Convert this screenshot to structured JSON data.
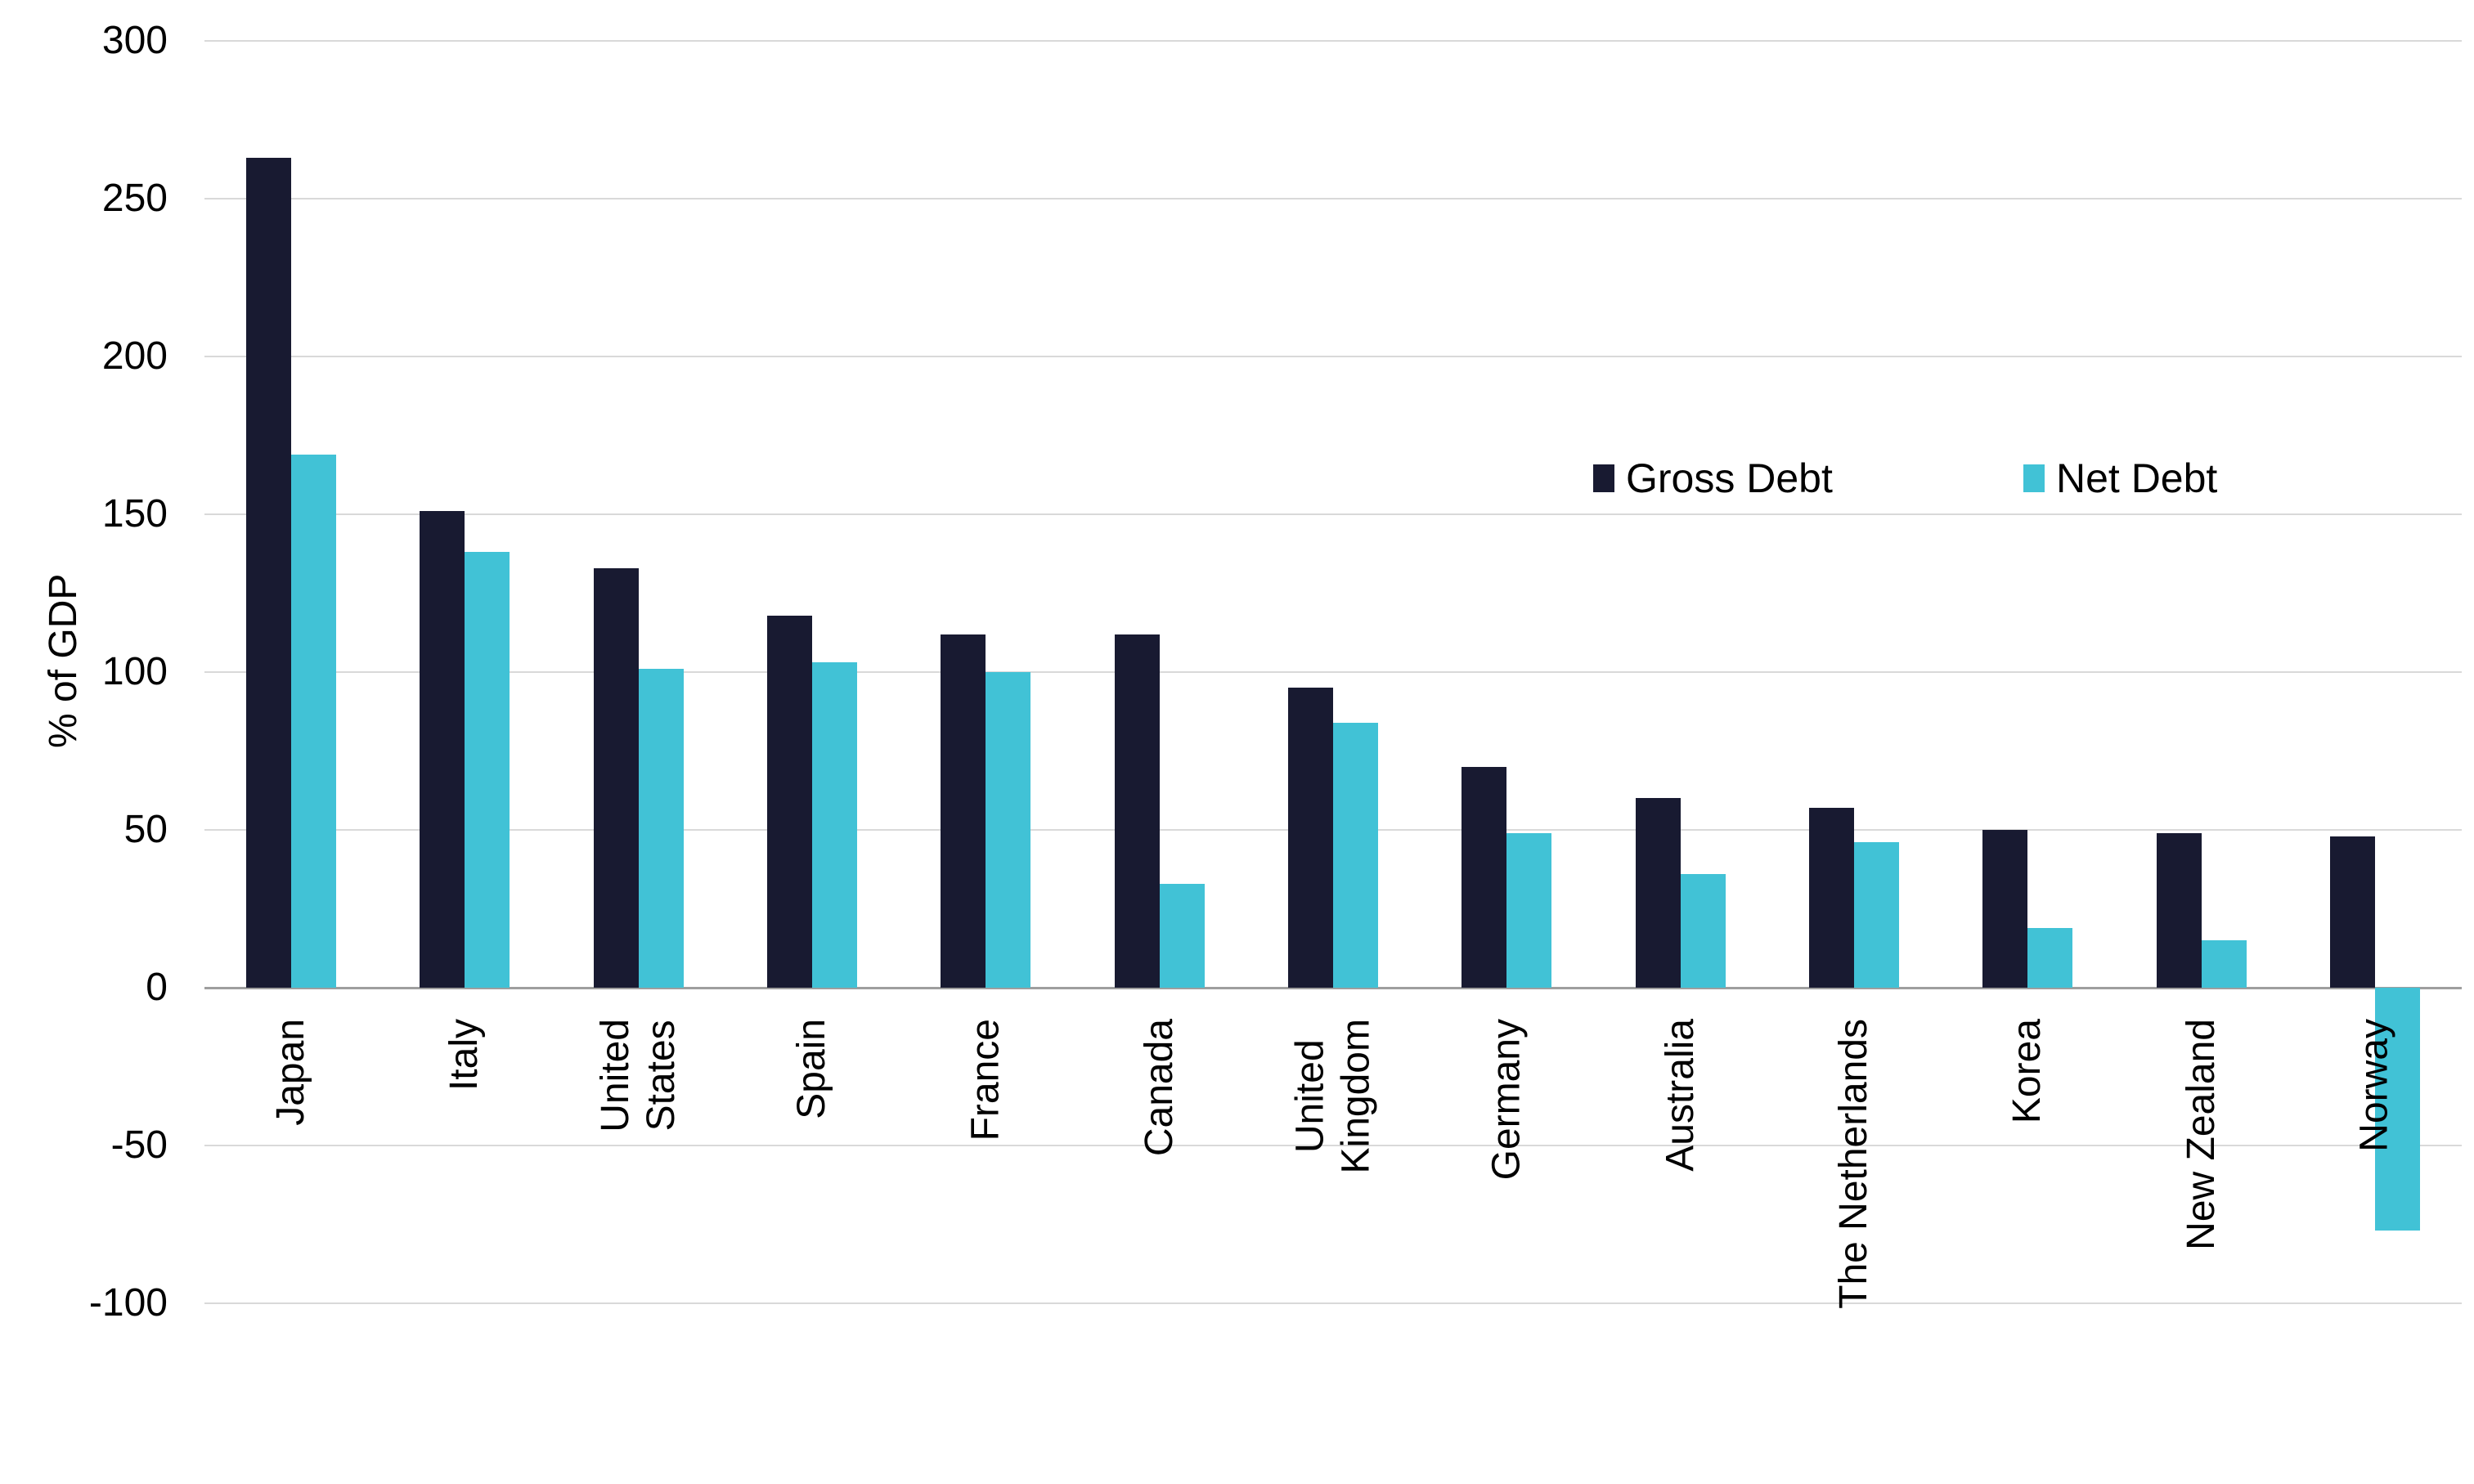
{
  "chart_data": {
    "type": "bar",
    "title": "",
    "xlabel": "",
    "ylabel": "% of GDP",
    "ylim": [
      -100,
      300
    ],
    "ytick_step": 50,
    "yticks": [
      300,
      250,
      200,
      150,
      100,
      50,
      0,
      -50,
      -100
    ],
    "grid": true,
    "legend_position": "right-center",
    "categories": [
      "Japan",
      "Italy",
      "United\nStates",
      "Spain",
      "France",
      "Canada",
      "United\nKingdom",
      "Germany",
      "Australia",
      "The Netherlands",
      "Korea",
      "New Zealand",
      "Norway"
    ],
    "series": [
      {
        "name": "Gross Debt",
        "color": "#181a31",
        "values": [
          263,
          151,
          133,
          118,
          112,
          112,
          95,
          70,
          60,
          57,
          50,
          49,
          48
        ]
      },
      {
        "name": "Net Debt",
        "color": "#41c2d6",
        "values": [
          169,
          138,
          101,
          103,
          100,
          33,
          84,
          49,
          36,
          46,
          19,
          15,
          -77
        ]
      }
    ]
  },
  "colors": {
    "gridline": "#d9d9d9",
    "zero_line": "#9e9e9e",
    "text": "#000000",
    "background": "#ffffff"
  }
}
